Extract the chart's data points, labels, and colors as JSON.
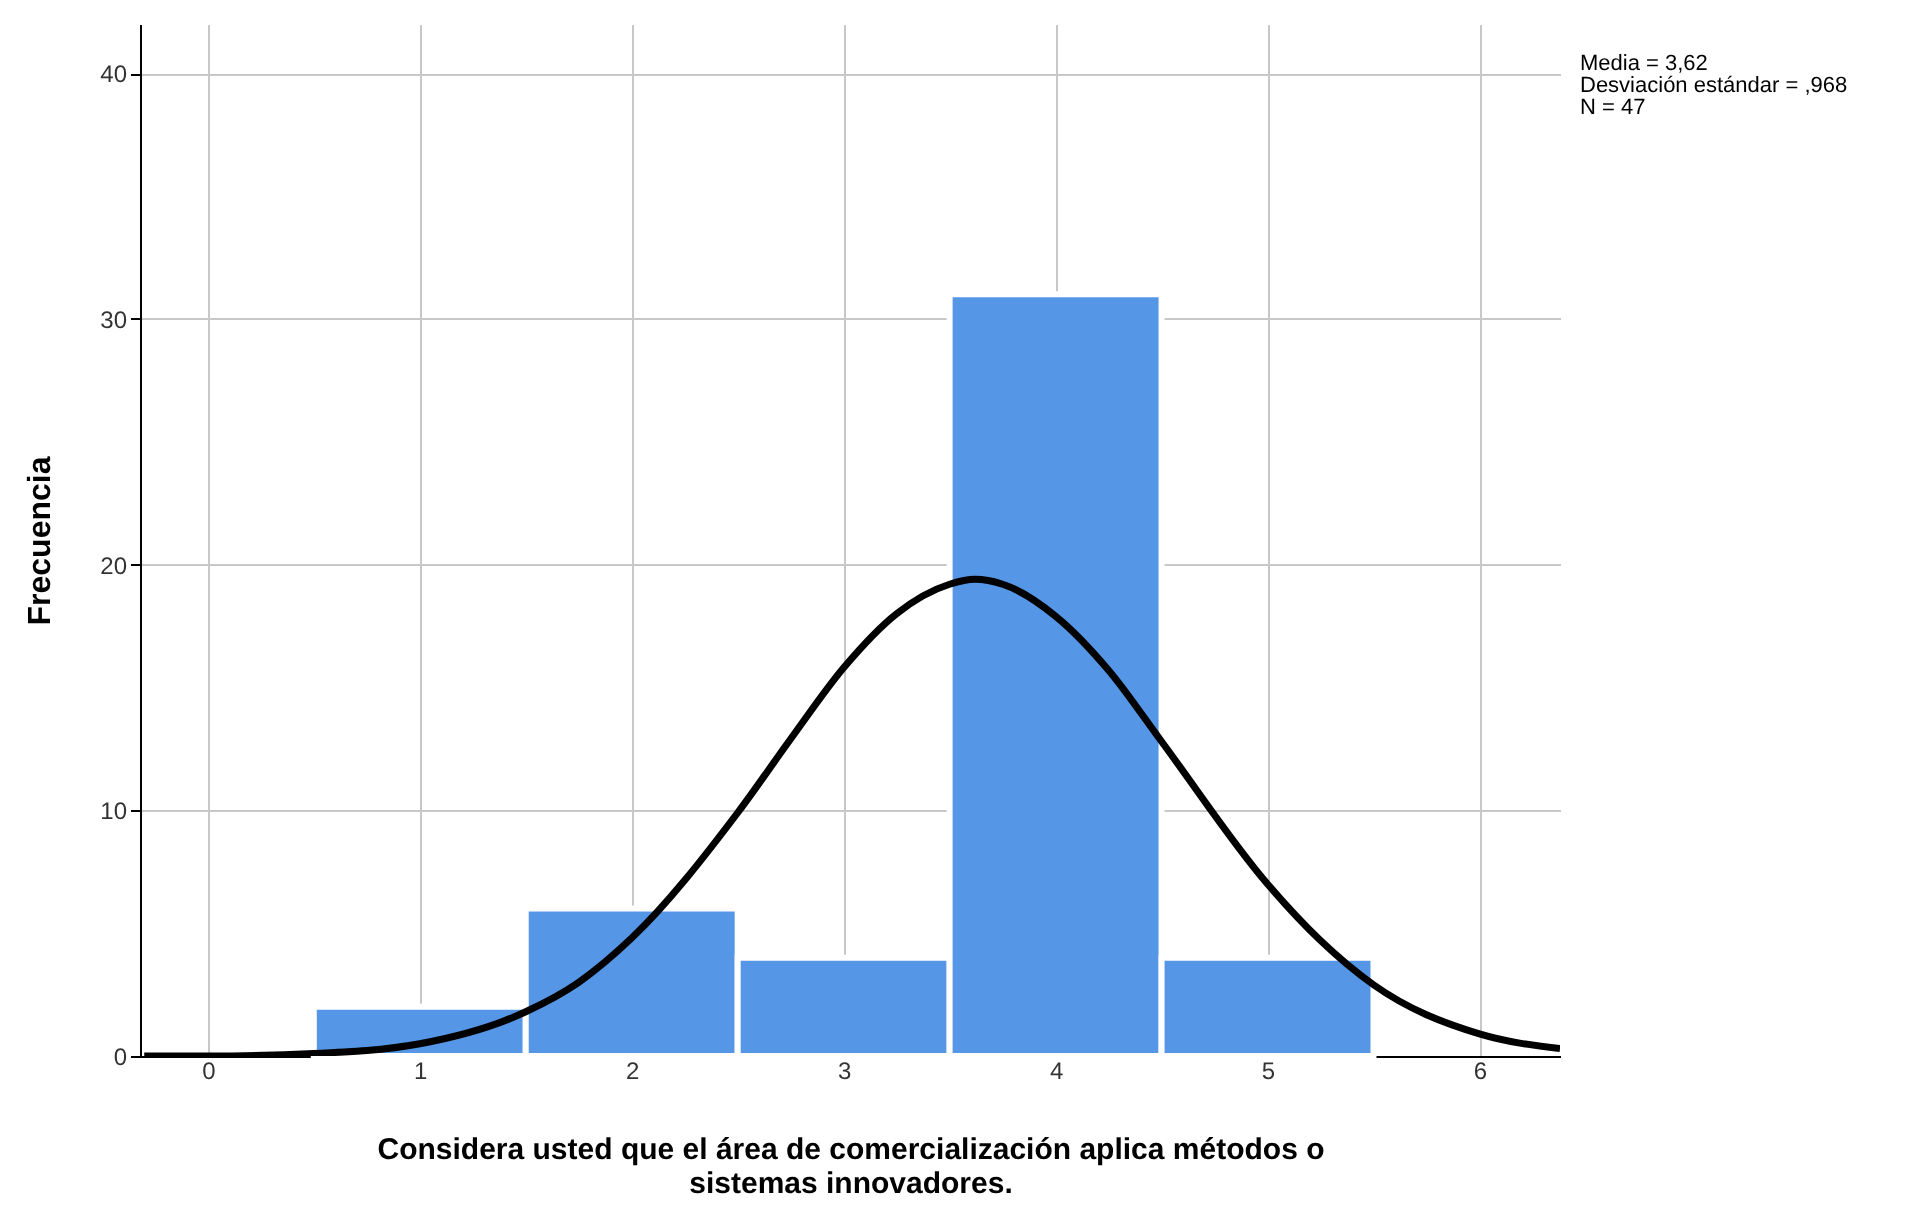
{
  "chart_data": {
    "type": "histogram",
    "xlabel": "Considera usted que el área de comercialización aplica métodos o sistemas innovadores.",
    "ylabel": "Frecuencia",
    "bins": [
      0.5,
      1.5,
      2.5,
      3.5,
      4.5,
      5.5
    ],
    "values": [
      2,
      6,
      4,
      31,
      4
    ],
    "color": "#5596e6",
    "series": [
      {
        "type": "line",
        "color": "#000000",
        "x": [
          -0.3,
          0,
          0.5,
          1,
          1.5,
          1.75,
          2,
          2.5,
          2.75,
          3,
          3.25,
          3.5,
          3.62,
          3.75,
          4,
          4.25,
          4.5,
          5,
          5.25,
          5.5,
          6,
          6.38
        ],
        "values": [
          0,
          0,
          0.1,
          0.5,
          1.8,
          3,
          4.8,
          9.9,
          12.9,
          15.8,
          18,
          19.2,
          19.4,
          19.2,
          17.9,
          15.7,
          12.8,
          7,
          4.7,
          2.9,
          0.9,
          0.3
        ]
      }
    ],
    "xlim": [
      -0.32,
      6.38
    ],
    "xticks": [
      0,
      1,
      2,
      3,
      4,
      5,
      6
    ],
    "ylim": [
      0,
      42
    ],
    "yticks": [
      0,
      10,
      20,
      30,
      40
    ],
    "grid": true,
    "annotations": [
      "Media = 3,62",
      "Desviación estándar = ,968",
      "N = 47"
    ]
  }
}
